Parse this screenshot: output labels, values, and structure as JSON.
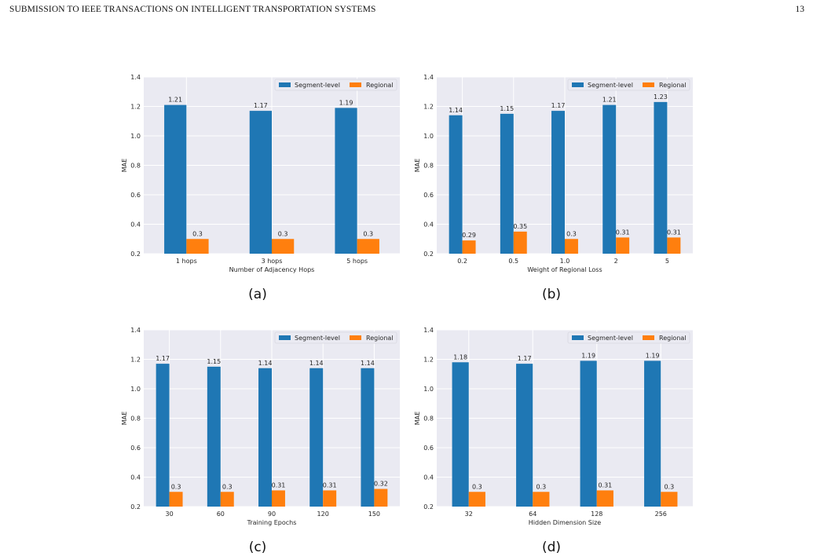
{
  "header": {
    "running_title": "SUBMISSION TO IEEE TRANSACTIONS ON INTELLIGENT TRANSPORTATION SYSTEMS",
    "page_number": "13"
  },
  "colors": {
    "segment": "#1f77b4",
    "regional": "#ff7f0e",
    "plot_bg": "#eaeaf2",
    "grid": "#ffffff"
  },
  "chart_data": [
    {
      "type": "bar",
      "panel_label": "(a)",
      "categories": [
        "1 hops",
        "3 hops",
        "5 hops"
      ],
      "series": [
        {
          "name": "Segment-level",
          "values": [
            1.21,
            1.17,
            1.19
          ],
          "labels": [
            "1.21",
            "1.17",
            "1.19"
          ]
        },
        {
          "name": "Regional",
          "values": [
            0.3,
            0.3,
            0.3
          ],
          "labels": [
            "0.3",
            "0.3",
            "0.3"
          ]
        }
      ],
      "xlabel": "Number of Adjacency Hops",
      "ylabel": "MAE",
      "ylim": [
        0.2,
        1.4
      ],
      "yticks": [
        "0.2",
        "0.4",
        "0.6",
        "0.8",
        "1.0",
        "1.2",
        "1.4"
      ],
      "grid": true,
      "legend_position": "top-right"
    },
    {
      "type": "bar",
      "panel_label": "(b)",
      "categories": [
        "0.2",
        "0.5",
        "1.0",
        "2",
        "5"
      ],
      "series": [
        {
          "name": "Segment-level",
          "values": [
            1.14,
            1.15,
            1.17,
            1.21,
            1.23
          ],
          "labels": [
            "1.14",
            "1.15",
            "1.17",
            "1.21",
            "1.23"
          ]
        },
        {
          "name": "Regional",
          "values": [
            0.29,
            0.35,
            0.3,
            0.31,
            0.31
          ],
          "labels": [
            "0.29",
            "0.35",
            "0.3",
            "0.31",
            "0.31"
          ]
        }
      ],
      "xlabel": "Weight of Regional Loss",
      "ylabel": "MAE",
      "ylim": [
        0.2,
        1.4
      ],
      "yticks": [
        "0.2",
        "0.4",
        "0.6",
        "0.8",
        "1.0",
        "1.2",
        "1.4"
      ],
      "grid": true,
      "legend_position": "top-right"
    },
    {
      "type": "bar",
      "panel_label": "(c)",
      "categories": [
        "30",
        "60",
        "90",
        "120",
        "150"
      ],
      "series": [
        {
          "name": "Segment-level",
          "values": [
            1.17,
            1.15,
            1.14,
            1.14,
            1.14
          ],
          "labels": [
            "1.17",
            "1.15",
            "1.14",
            "1.14",
            "1.14"
          ]
        },
        {
          "name": "Regional",
          "values": [
            0.3,
            0.3,
            0.31,
            0.31,
            0.32
          ],
          "labels": [
            "0.3",
            "0.3",
            "0.31",
            "0.31",
            "0.32"
          ]
        }
      ],
      "xlabel": "Training Epochs",
      "ylabel": "MAE",
      "ylim": [
        0.2,
        1.4
      ],
      "yticks": [
        "0.2",
        "0.4",
        "0.6",
        "0.8",
        "1.0",
        "1.2",
        "1.4"
      ],
      "grid": true,
      "legend_position": "top-right"
    },
    {
      "type": "bar",
      "panel_label": "(d)",
      "categories": [
        "32",
        "64",
        "128",
        "256"
      ],
      "series": [
        {
          "name": "Segment-level",
          "values": [
            1.18,
            1.17,
            1.19,
            1.19
          ],
          "labels": [
            "1.18",
            "1.17",
            "1.19",
            "1.19"
          ]
        },
        {
          "name": "Regional",
          "values": [
            0.3,
            0.3,
            0.31,
            0.3
          ],
          "labels": [
            "0.3",
            "0.3",
            "0.31",
            "0.3"
          ]
        }
      ],
      "xlabel": "Hidden Dimension Size",
      "ylabel": "MAE",
      "ylim": [
        0.2,
        1.4
      ],
      "yticks": [
        "0.2",
        "0.4",
        "0.6",
        "0.8",
        "1.0",
        "1.2",
        "1.4"
      ],
      "grid": true,
      "legend_position": "top-right"
    }
  ]
}
